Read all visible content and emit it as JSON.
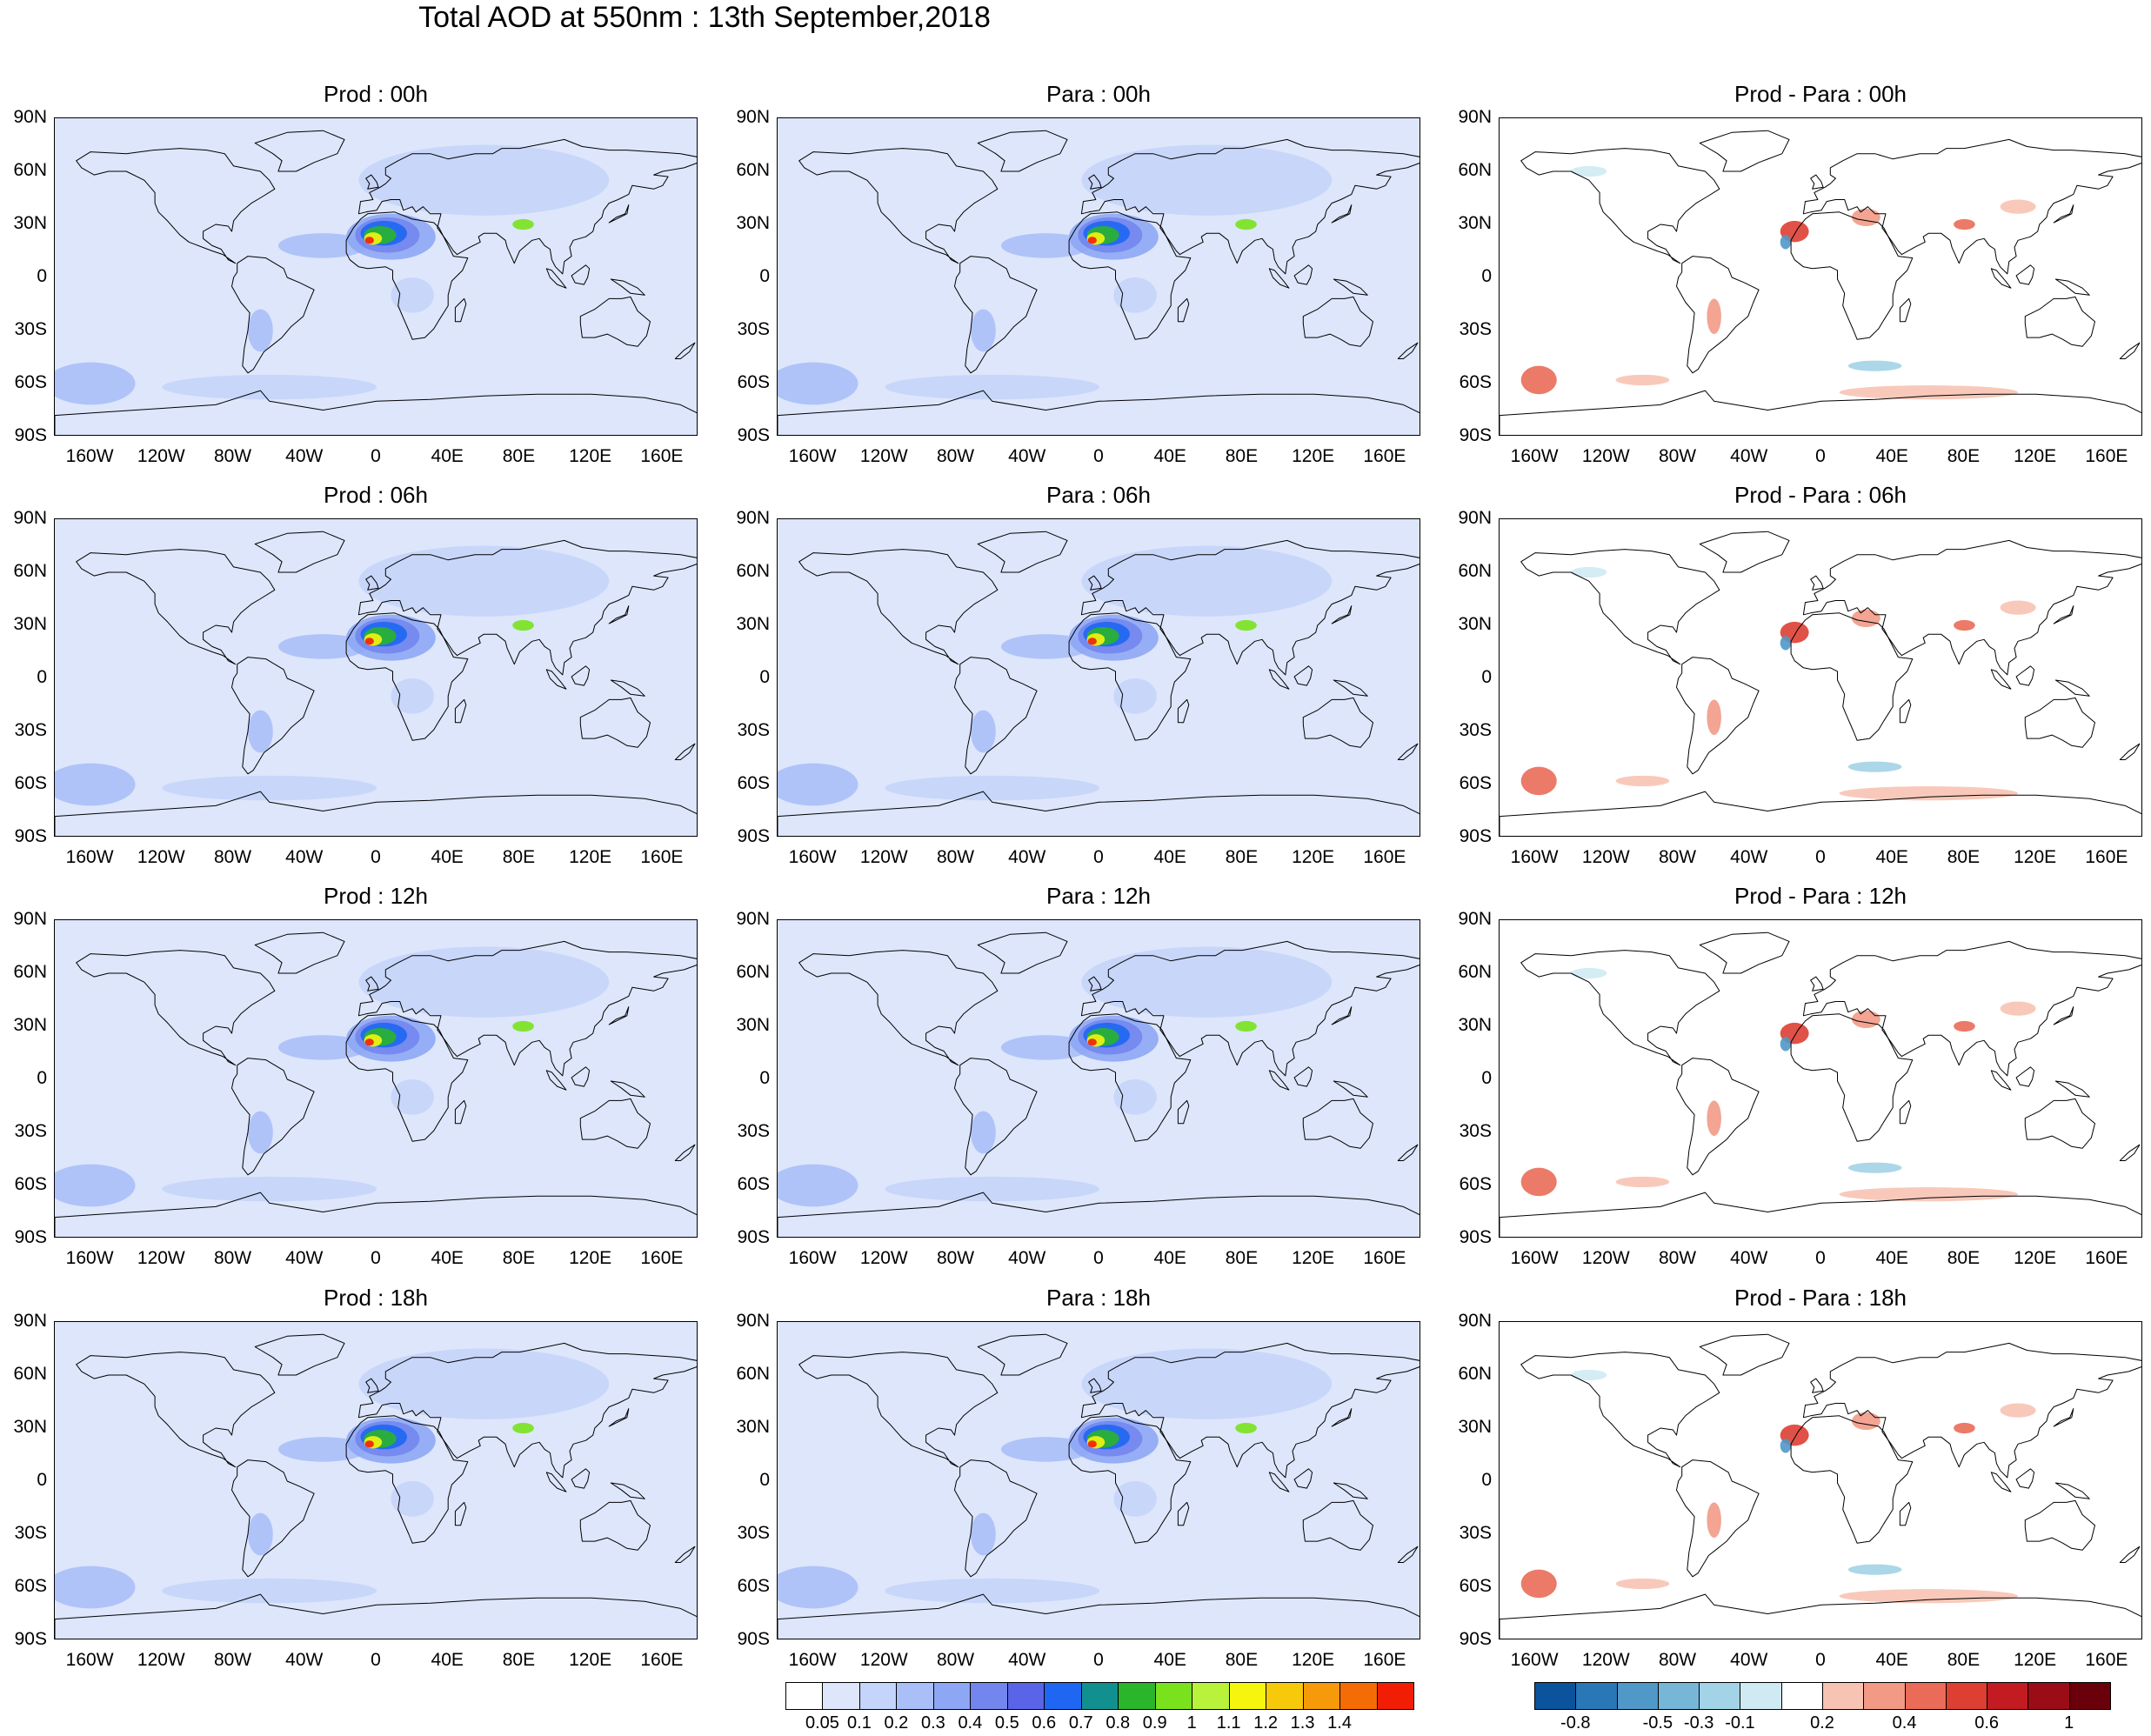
{
  "title": "Total AOD at 550nm : 13th September,2018",
  "panels": [
    {
      "title": "Prod : 00h",
      "kind": "aod"
    },
    {
      "title": "Para : 00h",
      "kind": "aod"
    },
    {
      "title": "Prod - Para : 00h",
      "kind": "diff"
    },
    {
      "title": "Prod : 06h",
      "kind": "aod"
    },
    {
      "title": "Para : 06h",
      "kind": "aod"
    },
    {
      "title": "Prod - Para : 06h",
      "kind": "diff"
    },
    {
      "title": "Prod : 12h",
      "kind": "aod"
    },
    {
      "title": "Para : 12h",
      "kind": "aod"
    },
    {
      "title": "Prod - Para : 12h",
      "kind": "diff"
    },
    {
      "title": "Prod : 18h",
      "kind": "aod"
    },
    {
      "title": "Para : 18h",
      "kind": "aod"
    },
    {
      "title": "Prod - Para : 18h",
      "kind": "diff"
    }
  ],
  "lat_labels": [
    "90N",
    "60N",
    "30N",
    "0",
    "30S",
    "60S",
    "90S"
  ],
  "lon_labels": [
    "160W",
    "120W",
    "80W",
    "40W",
    "0",
    "40E",
    "80E",
    "120E",
    "160E"
  ],
  "aod_colorbar": {
    "labels": [
      "0.05",
      "0.1",
      "0.2",
      "0.3",
      "0.4",
      "0.5",
      "0.6",
      "0.7",
      "0.8",
      "0.9",
      "1",
      "1.1",
      "1.2",
      "1.3",
      "1.4"
    ],
    "colors": [
      "#ffffff",
      "#dde6fb",
      "#c5d4fa",
      "#aabff8",
      "#8ea7f4",
      "#7286ee",
      "#5a64e8",
      "#1f66f2",
      "#12908f",
      "#2ab52a",
      "#79e21c",
      "#b9f23a",
      "#f5f50e",
      "#f6c90a",
      "#f69a09",
      "#f46c06",
      "#f21d05"
    ]
  },
  "diff_colorbar": {
    "labels": [
      "-0.8",
      "-0.5",
      "-0.3",
      "-0.1",
      "0.2",
      "0.4",
      "0.6",
      "1"
    ],
    "colors": [
      "#0b539c",
      "#2a77b7",
      "#4f98c8",
      "#76b7d8",
      "#a2d3e6",
      "#cfeaf3",
      "#ffffff",
      "#f7c3b2",
      "#f29a86",
      "#ea6b58",
      "#dd3f33",
      "#c31b22",
      "#9a0c16",
      "#6a0009"
    ]
  }
}
